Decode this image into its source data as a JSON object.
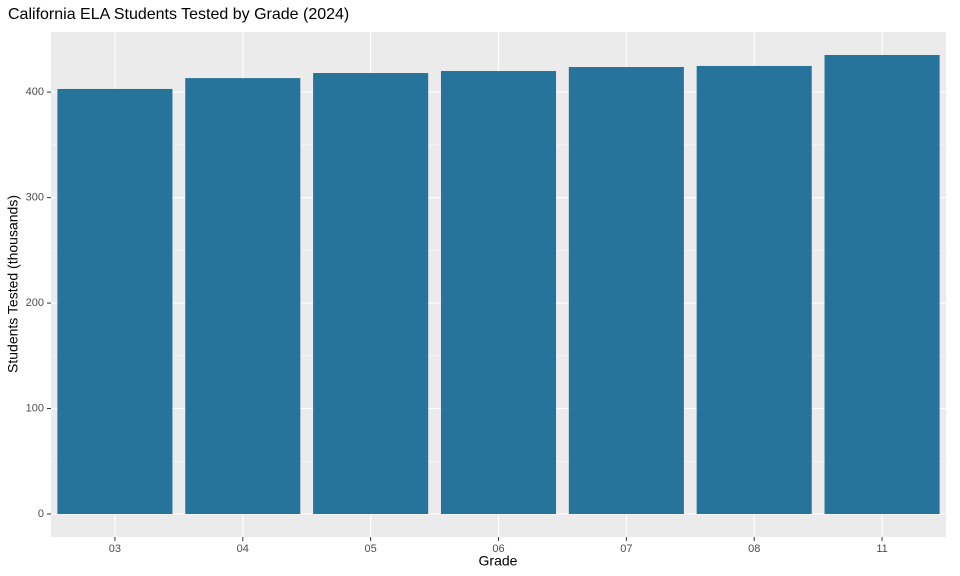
{
  "chart_data": {
    "type": "bar",
    "title": "California ELA Students Tested by Grade (2024)",
    "x_label": "Grade",
    "y_label": "Students Tested (thousands)",
    "categories": [
      "03",
      "04",
      "05",
      "06",
      "07",
      "08",
      "11"
    ],
    "values": [
      403,
      413.3,
      418.1,
      420,
      423.8,
      424.8,
      435.2
    ],
    "color": "#26749b",
    "ylim": [
      -21.8,
      457
    ],
    "yticks": [
      0,
      100,
      200,
      300,
      400
    ],
    "grid": true
  }
}
